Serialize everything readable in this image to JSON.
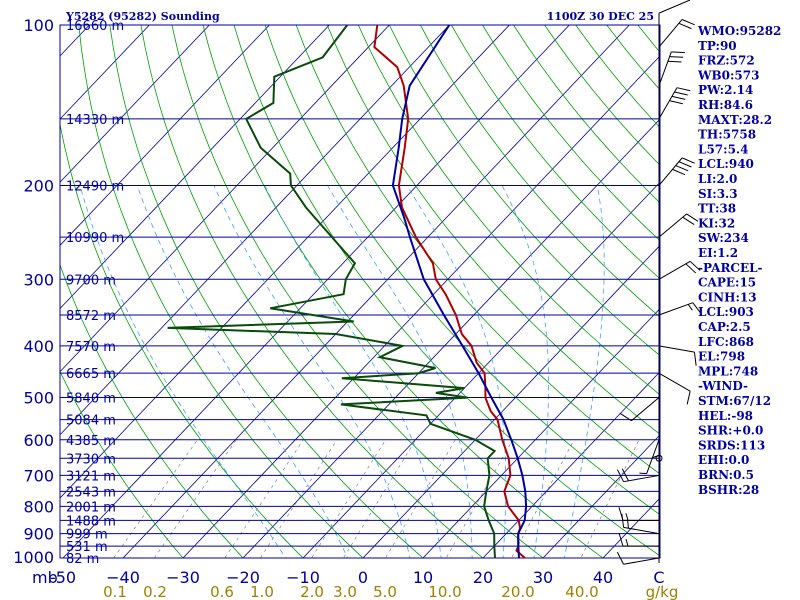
{
  "chart_data": {
    "type": "line",
    "subtype": "skew-t log-p sounding",
    "title_left": "Y5282 (95282) Sounding",
    "title_right": "1100Z 30 DEC 25",
    "y_axis": {
      "scale": "log",
      "unit_label": "mb",
      "range": [
        100,
        1000
      ],
      "tick_labels": [
        {
          "p": 100,
          "label": "100"
        },
        {
          "p": 200,
          "label": "200"
        },
        {
          "p": 300,
          "label": "300"
        },
        {
          "p": 400,
          "label": "400"
        },
        {
          "p": 500,
          "label": "500"
        },
        {
          "p": 600,
          "label": "600"
        },
        {
          "p": 700,
          "label": "700"
        },
        {
          "p": 800,
          "label": "800"
        },
        {
          "p": 900,
          "label": "900"
        },
        {
          "p": 1000,
          "label": "1000"
        }
      ]
    },
    "x_axis": {
      "unit_label": "C",
      "range": [
        -50,
        50
      ],
      "tick_labels": [
        {
          "t": -50,
          "label": "-50"
        },
        {
          "t": -40,
          "label": "−40"
        },
        {
          "t": -30,
          "label": "−30"
        },
        {
          "t": -20,
          "label": "−20"
        },
        {
          "t": -10,
          "label": "−10"
        },
        {
          "t": 0,
          "label": "0"
        },
        {
          "t": 10,
          "label": "10"
        },
        {
          "t": 20,
          "label": "20"
        },
        {
          "t": 30,
          "label": "30"
        },
        {
          "t": 40,
          "label": "40"
        }
      ]
    },
    "mixing_ratio_axis": {
      "unit_label": "g/kg",
      "labels": [
        {
          "w": 0.1,
          "label": "0.1"
        },
        {
          "w": 0.2,
          "label": "0.2"
        },
        {
          "w": 0.6,
          "label": "0.6"
        },
        {
          "w": 1.0,
          "label": "1.0"
        },
        {
          "w": 2.0,
          "label": "2.0"
        },
        {
          "w": 3.0,
          "label": "3.0"
        },
        {
          "w": 5.0,
          "label": "5.0"
        },
        {
          "w": 10.0,
          "label": "10.0"
        },
        {
          "w": 20.0,
          "label": "20.0"
        },
        {
          "w": 40.0,
          "label": "40.0"
        }
      ]
    },
    "height_levels": [
      {
        "p": 100,
        "label": "16660 m"
      },
      {
        "p": 150,
        "label": "14330 m"
      },
      {
        "p": 200,
        "label": "12490 m"
      },
      {
        "p": 250,
        "label": "10990 m"
      },
      {
        "p": 300,
        "label": "9700 m"
      },
      {
        "p": 350,
        "label": "8572 m"
      },
      {
        "p": 400,
        "label": "7570 m"
      },
      {
        "p": 450,
        "label": "6665 m"
      },
      {
        "p": 500,
        "label": "5840 m"
      },
      {
        "p": 550,
        "label": "5084 m"
      },
      {
        "p": 600,
        "label": "4385 m"
      },
      {
        "p": 650,
        "label": "3730 m"
      },
      {
        "p": 700,
        "label": "3121 m"
      },
      {
        "p": 750,
        "label": "2543 m"
      },
      {
        "p": 800,
        "label": "2001 m"
      },
      {
        "p": 850,
        "label": "1488 m"
      },
      {
        "p": 900,
        "label": "999 m"
      },
      {
        "p": 950,
        "label": "531 m"
      },
      {
        "p": 1000,
        "label": "82 m"
      }
    ],
    "series": [
      {
        "key": "temperature",
        "color": "#b00000",
        "points": [
          [
            100,
            -82
          ],
          [
            110,
            -79
          ],
          [
            120,
            -72
          ],
          [
            130,
            -68
          ],
          [
            150,
            -62
          ],
          [
            170,
            -58
          ],
          [
            200,
            -53
          ],
          [
            220,
            -49
          ],
          [
            250,
            -42
          ],
          [
            280,
            -35
          ],
          [
            300,
            -32
          ],
          [
            320,
            -28
          ],
          [
            350,
            -23
          ],
          [
            380,
            -19
          ],
          [
            400,
            -15.5
          ],
          [
            430,
            -12
          ],
          [
            450,
            -9
          ],
          [
            480,
            -6.5
          ],
          [
            500,
            -5
          ],
          [
            530,
            -2
          ],
          [
            550,
            0.5
          ],
          [
            600,
            4.5
          ],
          [
            650,
            8.5
          ],
          [
            700,
            11.5
          ],
          [
            750,
            13
          ],
          [
            800,
            16
          ],
          [
            850,
            20
          ],
          [
            880,
            21.5
          ],
          [
            900,
            22
          ],
          [
            950,
            24
          ],
          [
            970,
            24.5
          ],
          [
            1000,
            27
          ]
        ]
      },
      {
        "key": "dewpoint",
        "color": "#0a4a0a",
        "points": [
          [
            100,
            -87
          ],
          [
            115,
            -86
          ],
          [
            125,
            -91
          ],
          [
            140,
            -87
          ],
          [
            150,
            -89
          ],
          [
            170,
            -82
          ],
          [
            190,
            -73
          ],
          [
            200,
            -71
          ],
          [
            220,
            -65
          ],
          [
            250,
            -56
          ],
          [
            280,
            -48
          ],
          [
            300,
            -47
          ],
          [
            320,
            -45
          ],
          [
            340,
            -55
          ],
          [
            360,
            -39
          ],
          [
            370,
            -69
          ],
          [
            380,
            -40
          ],
          [
            400,
            -27
          ],
          [
            420,
            -29
          ],
          [
            440,
            -18
          ],
          [
            450,
            -20
          ],
          [
            460,
            -32
          ],
          [
            480,
            -10
          ],
          [
            490,
            -14
          ],
          [
            500,
            -8
          ],
          [
            515,
            -28
          ],
          [
            540,
            -12
          ],
          [
            560,
            -10
          ],
          [
            600,
            0
          ],
          [
            630,
            5
          ],
          [
            650,
            5
          ],
          [
            700,
            8
          ],
          [
            750,
            10
          ],
          [
            800,
            12
          ],
          [
            850,
            15
          ],
          [
            900,
            18
          ],
          [
            950,
            20
          ],
          [
            1000,
            22
          ]
        ]
      },
      {
        "key": "parcel",
        "color": "#0000a0",
        "points": [
          [
            100,
            -70
          ],
          [
            130,
            -67
          ],
          [
            150,
            -63
          ],
          [
            170,
            -59
          ],
          [
            200,
            -54
          ],
          [
            230,
            -47
          ],
          [
            250,
            -43
          ],
          [
            300,
            -34
          ],
          [
            350,
            -25
          ],
          [
            400,
            -17
          ],
          [
            450,
            -10
          ],
          [
            500,
            -4
          ],
          [
            550,
            1.5
          ],
          [
            600,
            6
          ],
          [
            650,
            10
          ],
          [
            700,
            13.5
          ],
          [
            750,
            16.5
          ],
          [
            800,
            19
          ],
          [
            850,
            21
          ],
          [
            900,
            22
          ],
          [
            950,
            24
          ],
          [
            1000,
            26
          ]
        ]
      }
    ],
    "wind_barbs": [
      {
        "p": 1000,
        "dir": 260,
        "kt": 10
      },
      {
        "p": 950,
        "dir": 270,
        "kt": 15
      },
      {
        "p": 900,
        "dir": 280,
        "kt": 15
      },
      {
        "p": 850,
        "dir": 270,
        "kt": 15
      },
      {
        "p": 700,
        "dir": 260,
        "kt": 20
      },
      {
        "p": 650,
        "dir": 0,
        "kt": 0
      },
      {
        "p": 600,
        "dir": 200,
        "kt": 5
      },
      {
        "p": 550,
        "dir": 180,
        "kt": 5
      },
      {
        "p": 500,
        "dir": 230,
        "kt": 10
      },
      {
        "p": 450,
        "dir": 120,
        "kt": 10
      },
      {
        "p": 400,
        "dir": 100,
        "kt": 10
      },
      {
        "p": 350,
        "dir": 70,
        "kt": 15
      },
      {
        "p": 300,
        "dir": 60,
        "kt": 20
      },
      {
        "p": 250,
        "dir": 50,
        "kt": 20
      },
      {
        "p": 200,
        "dir": 40,
        "kt": 40
      },
      {
        "p": 150,
        "dir": 30,
        "kt": 40
      },
      {
        "p": 130,
        "dir": 20,
        "kt": 30
      },
      {
        "p": 110,
        "dir": 40,
        "kt": 20
      }
    ],
    "indices": [
      "WMO:95282",
      "TP:90",
      "FRZ:572",
      "WB0:573",
      "PW:2.14",
      "RH:84.6",
      "MAXT:28.2",
      "TH:5758",
      "L57:5.4",
      "LCL:940",
      "LI:2.0",
      "SI:3.3",
      "TT:38",
      "KI:32",
      "SW:234",
      "EI:1.2",
      "-PARCEL-",
      "CAPE:15",
      "CINH:13",
      "LCL:903",
      "CAP:2.5",
      "LFC:868",
      "EL:798",
      "MPL:748",
      "-WIND-",
      "STM:67/12",
      "HEL:-98",
      "SHR:+0.0",
      "SRDS:113",
      "EHI:0.0",
      "BRN:0.5",
      "BSHR:28"
    ]
  },
  "colors": {
    "isobar": "#0000a0",
    "isotherm": "#0000a0",
    "dry_adiabat": "#00a000",
    "moist_adiabat": "#40a0ff",
    "mixing_ratio": "#808080",
    "text": "#0000a0",
    "mix_label": "#a08000"
  }
}
